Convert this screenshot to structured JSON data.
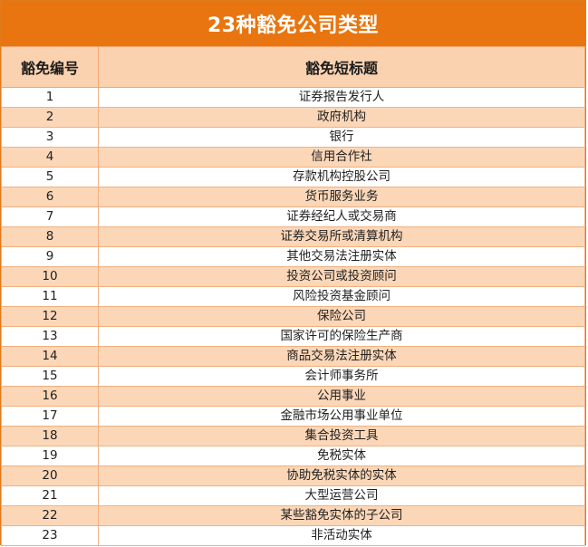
{
  "title": "23种豁免公司类型",
  "headers": {
    "number": "豁免编号",
    "short_title": "豁免短标题"
  },
  "rows": [
    {
      "num": "1",
      "label": "证券报告发行人"
    },
    {
      "num": "2",
      "label": "政府机构"
    },
    {
      "num": "3",
      "label": "银行"
    },
    {
      "num": "4",
      "label": "信用合作社"
    },
    {
      "num": "5",
      "label": "存款机构控股公司"
    },
    {
      "num": "6",
      "label": "货币服务业务"
    },
    {
      "num": "7",
      "label": "证券经纪人或交易商"
    },
    {
      "num": "8",
      "label": "证券交易所或清算机构"
    },
    {
      "num": "9",
      "label": "其他交易法注册实体"
    },
    {
      "num": "10",
      "label": "投资公司或投资顾问"
    },
    {
      "num": "11",
      "label": "风险投资基金顾问"
    },
    {
      "num": "12",
      "label": "保险公司"
    },
    {
      "num": "13",
      "label": "国家许可的保险生产商"
    },
    {
      "num": "14",
      "label": "商品交易法注册实体"
    },
    {
      "num": "15",
      "label": "会计师事务所"
    },
    {
      "num": "16",
      "label": "公用事业"
    },
    {
      "num": "17",
      "label": "金融市场公用事业单位"
    },
    {
      "num": "18",
      "label": "集合投资工具"
    },
    {
      "num": "19",
      "label": "免税实体"
    },
    {
      "num": "20",
      "label": "协助免税实体的实体"
    },
    {
      "num": "21",
      "label": "大型运营公司"
    },
    {
      "num": "22",
      "label": "某些豁免实体的子公司"
    },
    {
      "num": "23",
      "label": "非活动实体"
    }
  ],
  "colors": {
    "title_bg": "#e8750f",
    "header_bg": "#fbd2b0",
    "even_row_bg": "#fbd7b8",
    "border": "#f0b080"
  }
}
